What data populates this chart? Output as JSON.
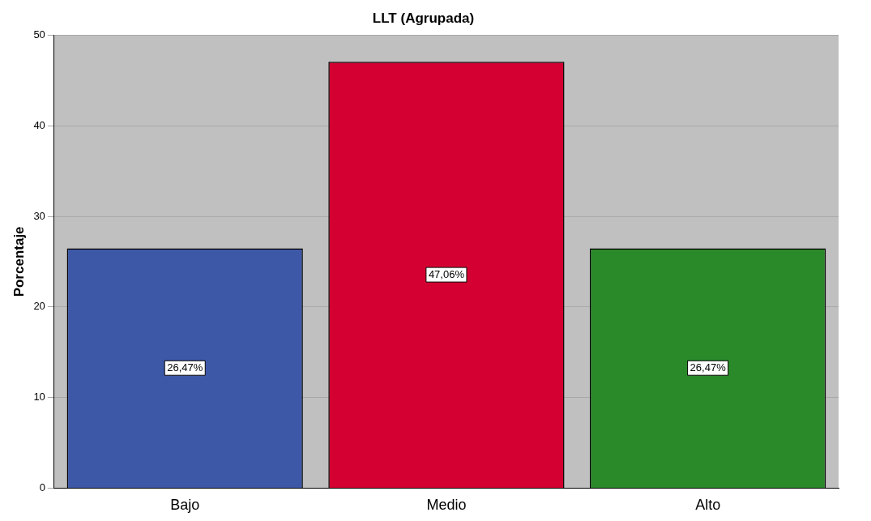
{
  "chart_data": {
    "type": "bar",
    "title": "LLT (Agrupada)",
    "ylabel": "Porcentaje",
    "categories": [
      "Bajo",
      "Medio",
      "Alto"
    ],
    "values": [
      26.47,
      47.06,
      26.47
    ],
    "colors": [
      "#3e58a8",
      "#d50032",
      "#2a8a2a"
    ],
    "value_labels": [
      "26,47%",
      "47,06%",
      "26,47%"
    ],
    "ylim": [
      0,
      50
    ],
    "yticks": [
      0,
      10,
      20,
      30,
      40,
      50
    ],
    "grid": "y"
  }
}
